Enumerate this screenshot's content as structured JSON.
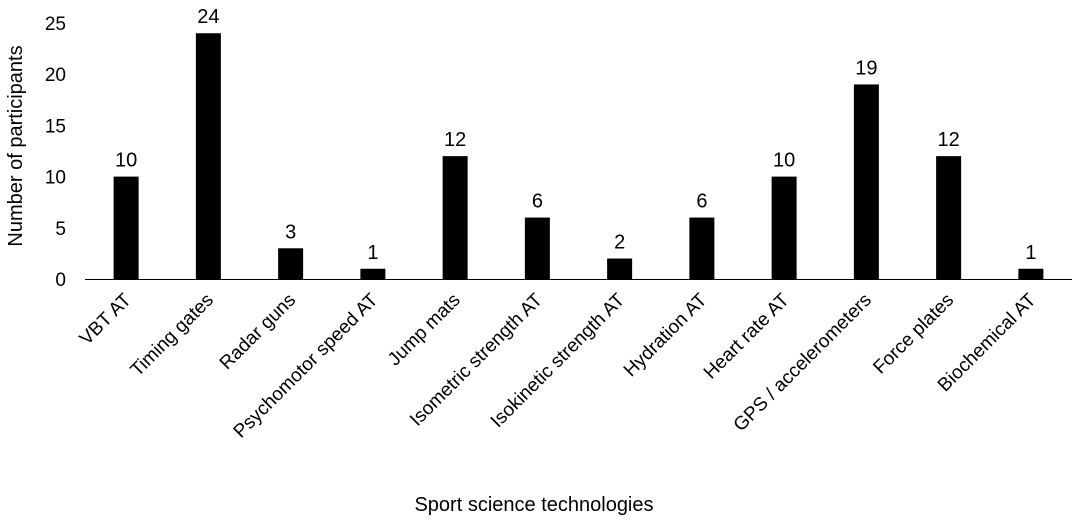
{
  "chart_data": {
    "type": "bar",
    "categories": [
      "VBT AT",
      "Timing gates",
      "Radar guns",
      "Psychomotor speed AT",
      "Jump mats",
      "Isometric strength AT",
      "Isokinetic strength AT",
      "Hydration AT",
      "Heart rate AT",
      "GPS / accelerometers",
      "Force plates",
      "Biochemical AT"
    ],
    "values": [
      10,
      24,
      3,
      1,
      12,
      6,
      2,
      6,
      10,
      19,
      12,
      1
    ],
    "xlabel": "Sport science technologies",
    "ylabel": "Number of participants",
    "ylim": [
      0,
      25
    ],
    "yticks": [
      0,
      5,
      10,
      15,
      20,
      25
    ],
    "grid": false,
    "bar_color": "#000000",
    "data_labels": true
  }
}
